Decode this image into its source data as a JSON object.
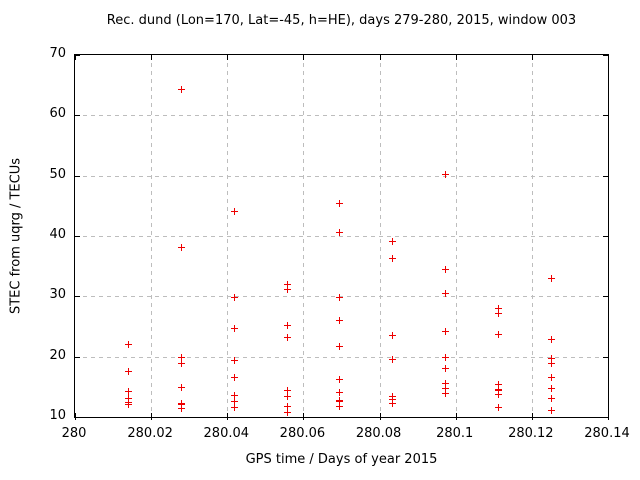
{
  "chart_data": {
    "type": "scatter",
    "title": "Rec. dund (Lon=170, Lat=-45, h=HE), days 279-280, 2015, window 003",
    "xlabel": "GPS time / Days of year 2015",
    "ylabel": "STEC from uqrg / TECUs",
    "xlim": [
      280,
      280.14
    ],
    "ylim": [
      10,
      70
    ],
    "x_ticks": [
      280,
      280.02,
      280.04,
      280.06,
      280.08,
      280.1,
      280.12,
      280.14
    ],
    "x_tick_labels": [
      "280",
      "280.02",
      "280.04",
      "280.06",
      "280.08",
      "280.1",
      "280.12",
      "280.14"
    ],
    "y_ticks": [
      10,
      20,
      30,
      40,
      50,
      60,
      70
    ],
    "y_tick_labels": [
      "10",
      "20",
      "30",
      "40",
      "50",
      "60",
      "70"
    ],
    "grid": "dashed",
    "grid_color": "#bdbdbd",
    "legend": "none",
    "marker": "plus",
    "marker_color": "#ee0000",
    "series": [
      {
        "name": "STEC from uqrg",
        "points": [
          [
            280.0139,
            22.1
          ],
          [
            280.0139,
            17.7
          ],
          [
            280.0139,
            14.3
          ],
          [
            280.0139,
            13.1
          ],
          [
            280.0139,
            12.5
          ],
          [
            280.0139,
            12.2
          ],
          [
            280.0278,
            64.3
          ],
          [
            280.0278,
            38.1
          ],
          [
            280.0278,
            19.9
          ],
          [
            280.0278,
            18.9
          ],
          [
            280.0278,
            15.0
          ],
          [
            280.0278,
            12.4
          ],
          [
            280.0278,
            12.2
          ],
          [
            280.0278,
            11.5
          ],
          [
            280.0417,
            44.1
          ],
          [
            280.0417,
            29.9
          ],
          [
            280.0417,
            24.8
          ],
          [
            280.0417,
            19.4
          ],
          [
            280.0417,
            16.7
          ],
          [
            280.0417,
            13.6
          ],
          [
            280.0417,
            12.6
          ],
          [
            280.0417,
            11.7
          ],
          [
            280.0556,
            32.0
          ],
          [
            280.0556,
            31.2
          ],
          [
            280.0556,
            25.3
          ],
          [
            280.0556,
            23.3
          ],
          [
            280.0556,
            14.4
          ],
          [
            280.0556,
            13.4
          ],
          [
            280.0556,
            11.8
          ],
          [
            280.0556,
            10.8
          ],
          [
            280.0694,
            45.4
          ],
          [
            280.0694,
            40.6
          ],
          [
            280.0694,
            29.9
          ],
          [
            280.0694,
            26.1
          ],
          [
            280.0694,
            21.8
          ],
          [
            280.0694,
            16.3
          ],
          [
            280.0694,
            14.2
          ],
          [
            280.0694,
            12.9
          ],
          [
            280.0694,
            12.7
          ],
          [
            280.0694,
            11.8
          ],
          [
            280.0833,
            39.2
          ],
          [
            280.0833,
            36.4
          ],
          [
            280.0833,
            23.6
          ],
          [
            280.0833,
            19.6
          ],
          [
            280.0833,
            13.5
          ],
          [
            280.0833,
            13.0
          ],
          [
            280.0833,
            12.4
          ],
          [
            280.0972,
            50.3
          ],
          [
            280.0972,
            34.5
          ],
          [
            280.0972,
            30.6
          ],
          [
            280.0972,
            24.3
          ],
          [
            280.0972,
            20.0
          ],
          [
            280.0972,
            18.2
          ],
          [
            280.0972,
            15.7
          ],
          [
            280.0972,
            14.8
          ],
          [
            280.0972,
            13.9
          ],
          [
            280.1111,
            28.0
          ],
          [
            280.1111,
            27.2
          ],
          [
            280.1111,
            23.7
          ],
          [
            280.1111,
            15.4
          ],
          [
            280.1111,
            14.7
          ],
          [
            280.1111,
            14.4
          ],
          [
            280.1111,
            13.8
          ],
          [
            280.1111,
            11.6
          ],
          [
            280.125,
            33.1
          ],
          [
            280.125,
            23.0
          ],
          [
            280.125,
            19.8
          ],
          [
            280.125,
            19.0
          ],
          [
            280.125,
            16.6
          ],
          [
            280.125,
            14.8
          ],
          [
            280.125,
            13.1
          ],
          [
            280.125,
            11.1
          ]
        ]
      }
    ]
  }
}
